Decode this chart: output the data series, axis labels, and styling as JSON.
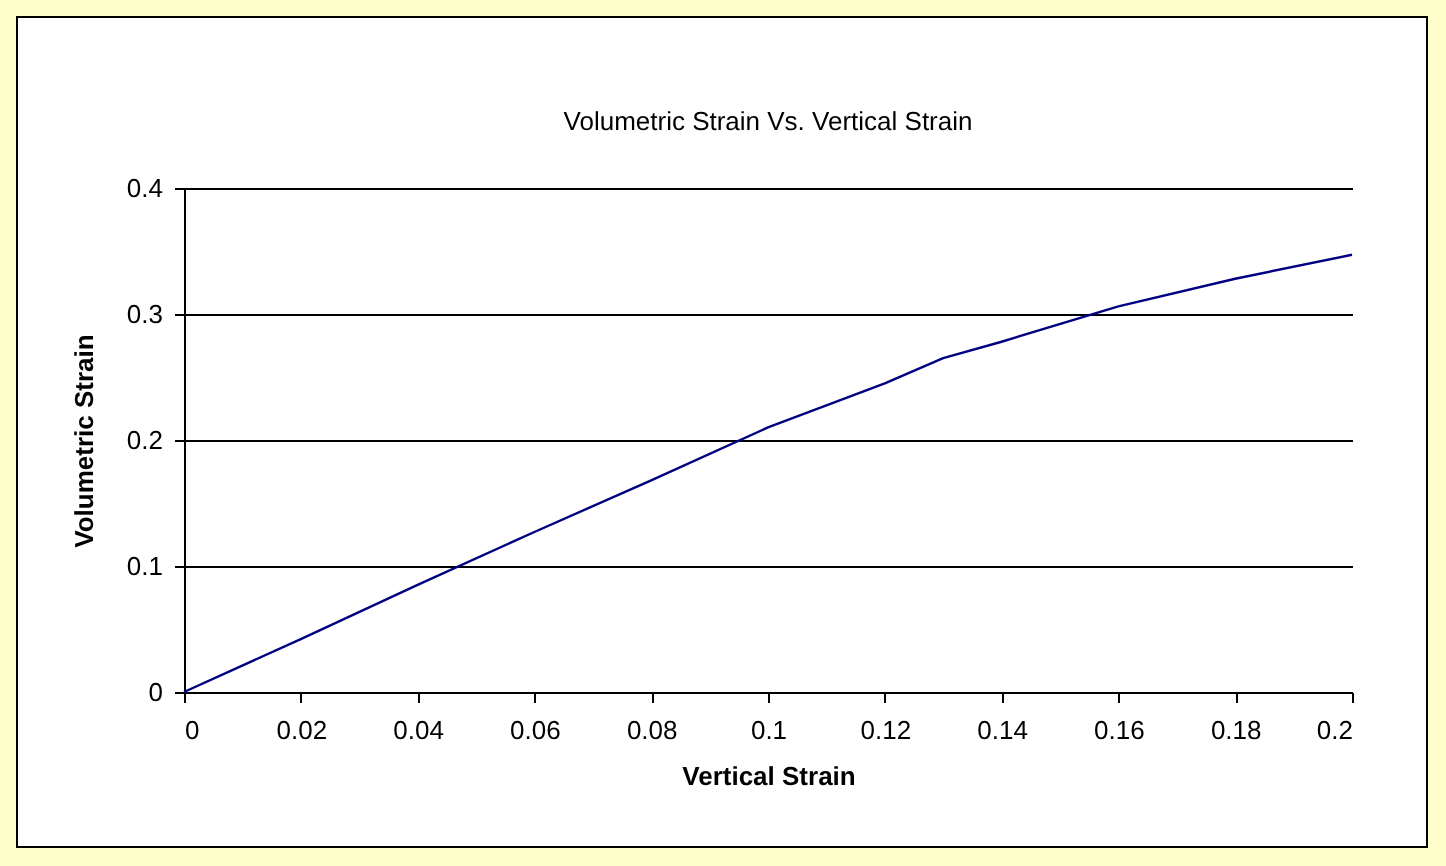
{
  "chart_data": {
    "type": "line",
    "title": "Volumetric Strain Vs. Vertical Strain",
    "xlabel": "Vertical Strain",
    "ylabel": "Volumetric Strain",
    "x": [
      0,
      0.02,
      0.04,
      0.06,
      0.08,
      0.1,
      0.12,
      0.13,
      0.14,
      0.16,
      0.18,
      0.2
    ],
    "series": [
      {
        "color": "#000080",
        "values": [
          0,
          0.042,
          0.085,
          0.127,
          0.168,
          0.21,
          0.245,
          0.265,
          0.278,
          0.306,
          0.328,
          0.347
        ]
      }
    ],
    "xlim": [
      0,
      0.2
    ],
    "xticks": [
      0,
      0.02,
      0.04,
      0.06,
      0.08,
      0.1,
      0.12,
      0.14,
      0.16,
      0.18,
      0.2
    ],
    "ylim": [
      0,
      0.4
    ],
    "yticks": [
      0,
      0.1,
      0.2,
      0.3,
      0.4
    ],
    "grid": "y",
    "legend": false,
    "marker": "none",
    "line_style": "solid"
  }
}
